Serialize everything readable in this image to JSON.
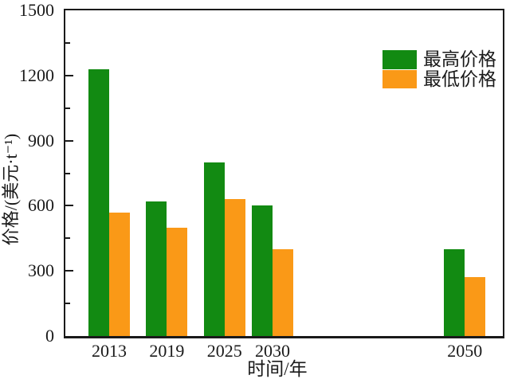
{
  "chart_data": {
    "type": "bar",
    "title": "",
    "xlabel": "时间/年",
    "ylabel": "价格/(美元·t⁻¹)",
    "categories": [
      2013,
      2019,
      2025,
      2030,
      2050
    ],
    "series": [
      {
        "name": "最高价格",
        "color": "#128a12",
        "values": [
          1230,
          620,
          800,
          600,
          400
        ]
      },
      {
        "name": "最低价格",
        "color": "#fa9917",
        "values": [
          570,
          500,
          630,
          400,
          270
        ]
      }
    ],
    "ylim": [
      0,
      1500
    ],
    "y_major_ticks": [
      0,
      300,
      600,
      900,
      1200,
      1500
    ],
    "y_minor_ticks": [
      150,
      450,
      750,
      1050,
      1350
    ],
    "x_axis_type": "linear-years",
    "legend_position": "top-right",
    "grid": false,
    "frame_color": "#1a1a1a"
  }
}
